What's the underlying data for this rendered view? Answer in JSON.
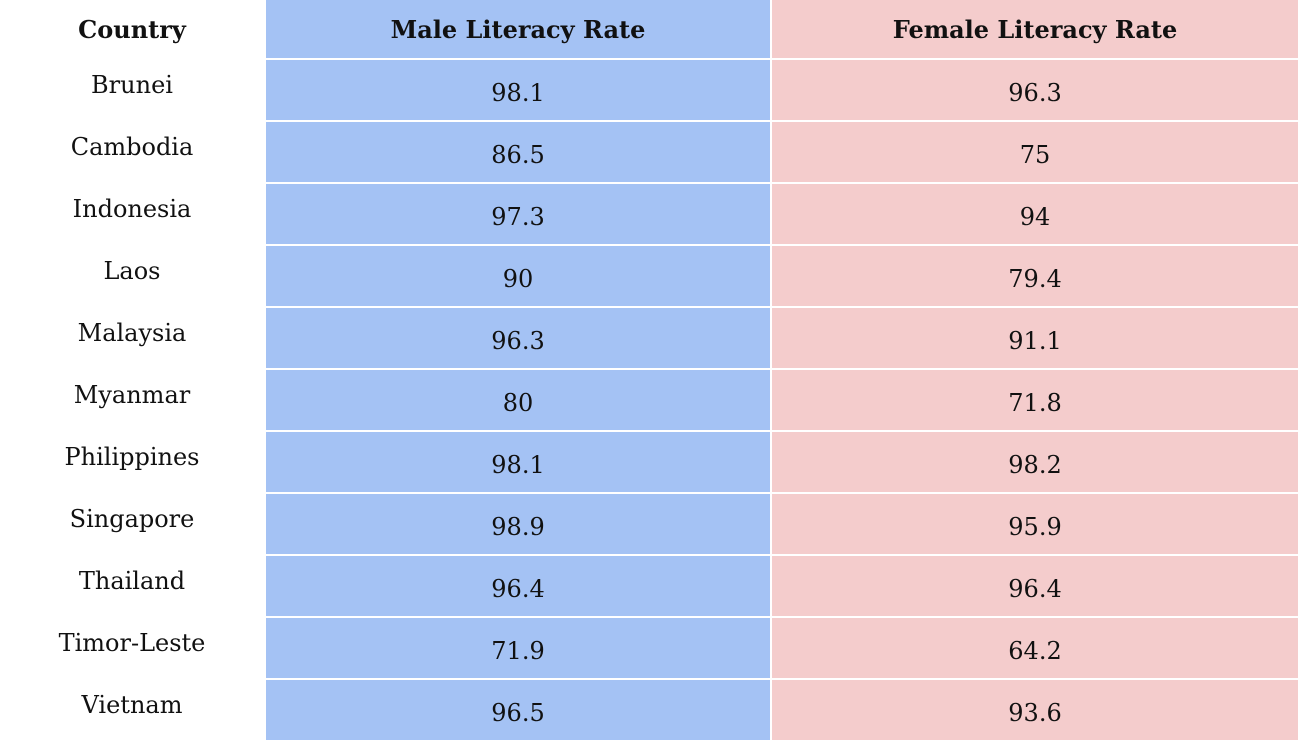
{
  "table": {
    "header": [
      "Country",
      "Male Literacy Rate",
      "Female Literacy Rate"
    ],
    "rows": [
      [
        "Brunei",
        98.1,
        96.3
      ],
      [
        "Cambodia",
        86.5,
        75
      ],
      [
        "Indonesia",
        97.3,
        94
      ],
      [
        "Laos",
        90,
        79.4
      ],
      [
        "Malaysia",
        96.3,
        91.1
      ],
      [
        "Myanmar",
        80,
        71.8
      ],
      [
        "Philippines",
        98.1,
        98.2
      ],
      [
        "Singapore",
        98.9,
        95.9
      ],
      [
        "Thailand",
        96.4,
        96.4
      ],
      [
        "Timor-Leste",
        71.9,
        64.2
      ],
      [
        "Vietnam",
        96.5,
        93.6
      ]
    ]
  }
}
